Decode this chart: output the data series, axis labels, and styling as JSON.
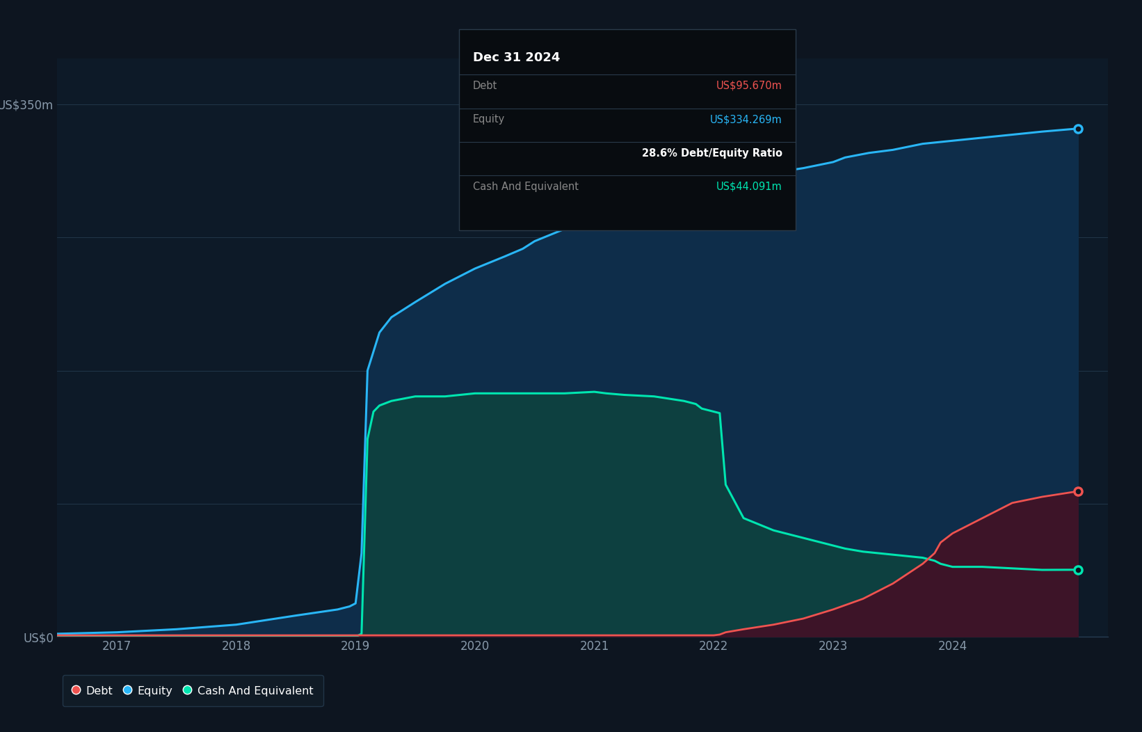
{
  "background_color": "#0d1520",
  "plot_bg_color": "#0d1a28",
  "grid_color": "#263d52",
  "ylabel_top": "US$350m",
  "ylabel_bottom": "US$0",
  "x_ticks": [
    2017,
    2018,
    2019,
    2020,
    2021,
    2022,
    2023,
    2024
  ],
  "equity_color": "#29b6f6",
  "equity_fill_top": "#1a4a6e",
  "equity_fill_bottom": "#0d1a28",
  "debt_color": "#ef5350",
  "debt_fill": "#5a1a2a",
  "cash_color": "#00e5b0",
  "cash_fill": "#0d4a45",
  "tooltip_bg": "#080c10",
  "tooltip_title": "Dec 31 2024",
  "tooltip_debt_label": "Debt",
  "tooltip_debt_value": "US$95.670m",
  "tooltip_equity_label": "Equity",
  "tooltip_equity_value": "US$334.269m",
  "tooltip_ratio": "28.6% Debt/Equity Ratio",
  "tooltip_cash_label": "Cash And Equivalent",
  "tooltip_cash_value": "US$44.091m",
  "equity_x": [
    2016.5,
    2017.0,
    2017.5,
    2018.0,
    2018.5,
    2018.85,
    2018.95,
    2019.0,
    2019.05,
    2019.1,
    2019.2,
    2019.3,
    2019.5,
    2019.75,
    2020.0,
    2020.25,
    2020.4,
    2020.5,
    2020.75,
    2021.0,
    2021.1,
    2021.3,
    2021.5,
    2021.75,
    2022.0,
    2022.25,
    2022.5,
    2022.75,
    2023.0,
    2023.1,
    2023.3,
    2023.5,
    2023.75,
    2024.0,
    2024.25,
    2024.5,
    2024.75,
    2025.05
  ],
  "equity_y": [
    2,
    3,
    5,
    8,
    14,
    18,
    20,
    22,
    55,
    175,
    200,
    210,
    220,
    232,
    242,
    250,
    255,
    260,
    268,
    275,
    278,
    282,
    288,
    292,
    296,
    300,
    305,
    308,
    312,
    315,
    318,
    320,
    324,
    326,
    328,
    330,
    332,
    334
  ],
  "debt_x": [
    2016.5,
    2017.0,
    2017.5,
    2018.0,
    2018.5,
    2019.0,
    2019.5,
    2020.0,
    2020.5,
    2021.0,
    2021.5,
    2022.0,
    2022.05,
    2022.1,
    2022.25,
    2022.5,
    2022.75,
    2023.0,
    2023.25,
    2023.5,
    2023.75,
    2023.85,
    2023.9,
    2024.0,
    2024.25,
    2024.4,
    2024.5,
    2024.75,
    2025.05
  ],
  "debt_y": [
    1,
    1,
    1,
    1,
    1,
    1,
    1,
    1,
    1,
    1,
    1,
    1,
    1.5,
    3,
    5,
    8,
    12,
    18,
    25,
    35,
    48,
    55,
    62,
    68,
    78,
    84,
    88,
    92,
    95.67
  ],
  "cash_x": [
    2016.5,
    2017.0,
    2017.5,
    2018.0,
    2018.5,
    2018.85,
    2018.95,
    2019.0,
    2019.05,
    2019.1,
    2019.15,
    2019.2,
    2019.3,
    2019.5,
    2019.75,
    2020.0,
    2020.25,
    2020.5,
    2020.75,
    2021.0,
    2021.1,
    2021.25,
    2021.5,
    2021.75,
    2021.85,
    2021.9,
    2022.0,
    2022.05,
    2022.1,
    2022.25,
    2022.5,
    2022.75,
    2023.0,
    2023.1,
    2023.25,
    2023.5,
    2023.75,
    2023.85,
    2023.9,
    2024.0,
    2024.25,
    2024.5,
    2024.75,
    2025.05
  ],
  "cash_y": [
    0,
    0,
    0,
    0,
    0,
    0,
    0,
    0,
    2,
    130,
    148,
    152,
    155,
    158,
    158,
    160,
    160,
    160,
    160,
    161,
    160,
    159,
    158,
    155,
    153,
    150,
    148,
    147,
    100,
    78,
    70,
    65,
    60,
    58,
    56,
    54,
    52,
    50,
    48,
    46,
    46,
    45,
    44,
    44.09
  ],
  "ylim": [
    0,
    380
  ],
  "xlim": [
    2016.5,
    2025.3
  ]
}
